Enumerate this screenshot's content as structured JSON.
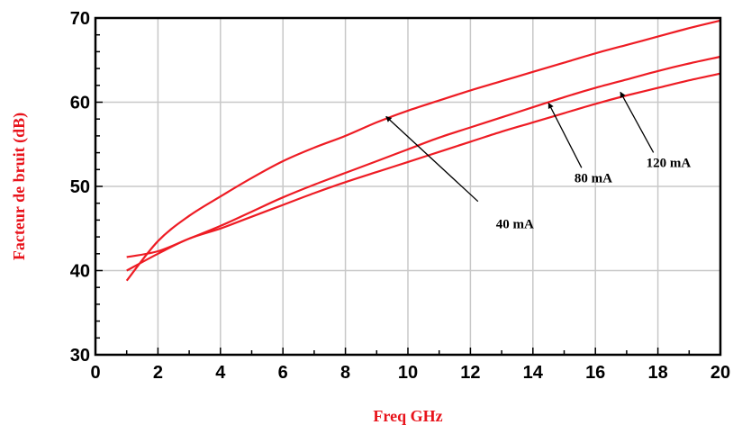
{
  "colors": {
    "curve": "#ee1c24",
    "axis_title": "#e8131b",
    "grid": "#c8c8c8",
    "frame": "#000000"
  },
  "chart_data": {
    "type": "line",
    "title": "",
    "xlabel": "Freq GHz",
    "ylabel": "Facteur de bruit (dB)",
    "xlim": [
      0,
      20
    ],
    "ylim": [
      30,
      70
    ],
    "grid": true,
    "x_ticks": [
      "0",
      "2",
      "4",
      "6",
      "8",
      "10",
      "12",
      "14",
      "16",
      "18",
      "20"
    ],
    "y_ticks": [
      "30",
      "40",
      "50",
      "60",
      "70"
    ],
    "series": [
      {
        "name": "40 mA",
        "x": [
          1,
          2,
          3,
          4,
          5,
          6,
          7,
          8,
          9,
          10,
          11,
          12,
          13,
          14,
          15,
          16,
          17,
          18,
          19,
          20
        ],
        "y": [
          38.8,
          43.5,
          46.5,
          48.8,
          51.0,
          53.0,
          54.6,
          56.0,
          57.6,
          59.0,
          60.2,
          61.4,
          62.5,
          63.6,
          64.7,
          65.8,
          66.8,
          67.8,
          68.8,
          69.7
        ]
      },
      {
        "name": "80 mA",
        "x": [
          1,
          2,
          3,
          4,
          5,
          6,
          7,
          8,
          9,
          10,
          11,
          12,
          13,
          14,
          15,
          16,
          17,
          18,
          19,
          20
        ],
        "y": [
          41.6,
          42.3,
          43.8,
          45.3,
          47.0,
          48.7,
          50.2,
          51.6,
          53.0,
          54.4,
          55.8,
          57.0,
          58.2,
          59.4,
          60.6,
          61.7,
          62.7,
          63.7,
          64.6,
          65.4
        ]
      },
      {
        "name": "120 mA",
        "x": [
          1,
          2,
          3,
          4,
          5,
          6,
          7,
          8,
          9,
          10,
          11,
          12,
          13,
          14,
          15,
          16,
          17,
          18,
          19,
          20
        ],
        "y": [
          40.0,
          42.0,
          43.8,
          45.0,
          46.4,
          47.8,
          49.2,
          50.5,
          51.7,
          52.9,
          54.1,
          55.3,
          56.5,
          57.6,
          58.7,
          59.8,
          60.8,
          61.7,
          62.6,
          63.4
        ]
      }
    ],
    "annotations": [
      {
        "text": "40 mA",
        "series": "40 mA",
        "label_at": [
          12.3,
          48.0
        ],
        "arrow_to": [
          9.3,
          58.3
        ]
      },
      {
        "text": "80 mA",
        "series": "80 mA",
        "label_at": [
          15.5,
          50.5
        ],
        "arrow_to": [
          14.5,
          59.9
        ]
      },
      {
        "text": "120 mA",
        "series": "120 mA",
        "label_at": [
          17.8,
          52.3
        ],
        "arrow_to": [
          16.8,
          61.2
        ]
      }
    ]
  }
}
